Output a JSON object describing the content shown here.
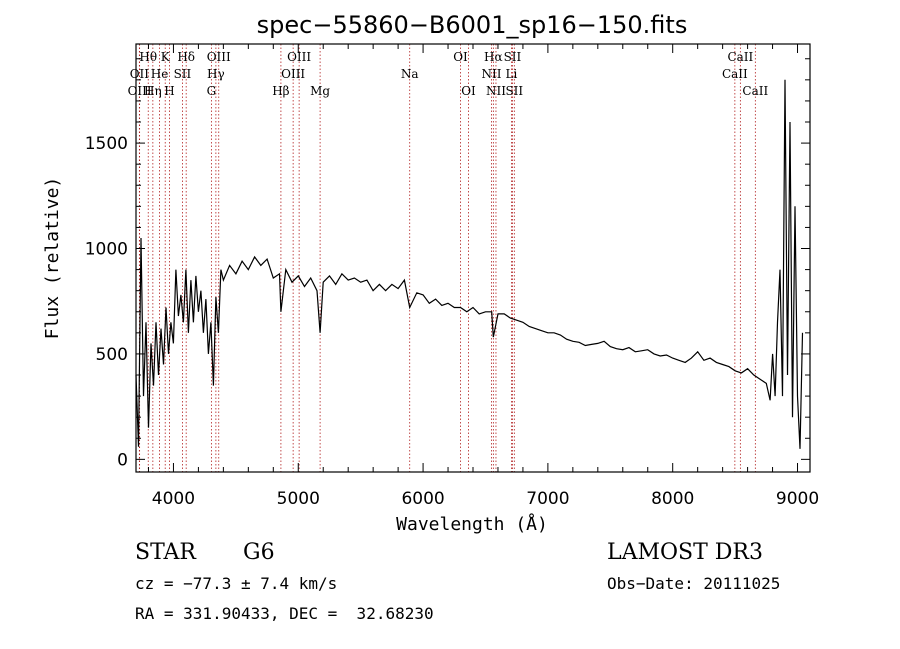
{
  "chart_data": {
    "type": "line",
    "title": "spec−55860−B6001_sp16−150.fits",
    "xlabel": "Wavelength (Å)",
    "ylabel": "Flux (relative)",
    "xlim": [
      3700,
      9100
    ],
    "ylim": [
      -60,
      1970
    ],
    "xticks": [
      4000,
      5000,
      6000,
      7000,
      8000,
      9000
    ],
    "yticks": [
      0,
      500,
      1000,
      1500
    ],
    "series": [
      {
        "name": "flux",
        "x": [
          3700,
          3720,
          3740,
          3760,
          3780,
          3800,
          3820,
          3840,
          3860,
          3880,
          3900,
          3920,
          3940,
          3960,
          3980,
          4000,
          4020,
          4040,
          4060,
          4080,
          4100,
          4120,
          4140,
          4160,
          4180,
          4200,
          4220,
          4240,
          4260,
          4280,
          4300,
          4320,
          4340,
          4360,
          4380,
          4400,
          4450,
          4500,
          4550,
          4600,
          4650,
          4700,
          4750,
          4800,
          4850,
          4861,
          4900,
          4950,
          5000,
          5050,
          5100,
          5150,
          5175,
          5200,
          5250,
          5300,
          5350,
          5400,
          5450,
          5500,
          5550,
          5600,
          5650,
          5700,
          5750,
          5800,
          5850,
          5893,
          5950,
          6000,
          6050,
          6100,
          6150,
          6200,
          6250,
          6300,
          6350,
          6400,
          6450,
          6500,
          6550,
          6563,
          6600,
          6650,
          6700,
          6750,
          6800,
          6850,
          6900,
          6950,
          7000,
          7050,
          7100,
          7150,
          7200,
          7250,
          7300,
          7350,
          7400,
          7450,
          7500,
          7550,
          7600,
          7650,
          7700,
          7750,
          7800,
          7850,
          7900,
          7950,
          8000,
          8050,
          8100,
          8150,
          8200,
          8250,
          8300,
          8350,
          8400,
          8450,
          8500,
          8550,
          8600,
          8650,
          8700,
          8750,
          8780,
          8800,
          8820,
          8840,
          8860,
          8880,
          8900,
          8920,
          8940,
          8960,
          8980,
          9000,
          9020,
          9040
        ],
        "values": [
          400,
          60,
          1050,
          300,
          650,
          150,
          550,
          350,
          650,
          400,
          620,
          450,
          720,
          500,
          650,
          550,
          900,
          680,
          780,
          650,
          900,
          600,
          850,
          650,
          870,
          700,
          800,
          600,
          760,
          500,
          650,
          350,
          770,
          600,
          900,
          850,
          920,
          880,
          940,
          900,
          960,
          920,
          950,
          860,
          880,
          700,
          900,
          840,
          870,
          820,
          860,
          800,
          600,
          840,
          870,
          830,
          880,
          850,
          860,
          840,
          850,
          800,
          830,
          800,
          830,
          810,
          850,
          720,
          790,
          780,
          740,
          760,
          730,
          740,
          720,
          720,
          700,
          720,
          690,
          700,
          700,
          580,
          690,
          690,
          670,
          660,
          650,
          630,
          620,
          610,
          600,
          600,
          590,
          570,
          560,
          555,
          540,
          545,
          550,
          560,
          535,
          525,
          520,
          530,
          510,
          515,
          520,
          500,
          490,
          495,
          480,
          470,
          460,
          480,
          510,
          470,
          480,
          460,
          450,
          440,
          420,
          410,
          430,
          400,
          380,
          360,
          280,
          500,
          300,
          650,
          900,
          300,
          1800,
          400,
          1600,
          200,
          1200,
          300,
          50,
          600
        ]
      }
    ],
    "lines": [
      {
        "label": "Hθ",
        "x": 3798,
        "row": 0
      },
      {
        "label": "OII",
        "x": 3727,
        "row": 1
      },
      {
        "label": "OIII",
        "x": 3729,
        "row": 2
      },
      {
        "label": "He",
        "x": 3889,
        "row": 1
      },
      {
        "label": "Hη",
        "x": 3835,
        "row": 2
      },
      {
        "label": "K",
        "x": 3934,
        "row": 0
      },
      {
        "label": "H",
        "x": 3968,
        "row": 2
      },
      {
        "label": "SII",
        "x": 4072,
        "row": 1
      },
      {
        "label": "Hδ",
        "x": 4102,
        "row": 0
      },
      {
        "label": "OIII",
        "x": 4363,
        "row": 0
      },
      {
        "label": "Hγ",
        "x": 4340,
        "row": 1
      },
      {
        "label": "G",
        "x": 4304,
        "row": 2
      },
      {
        "label": "Hβ",
        "x": 4861,
        "row": 2
      },
      {
        "label": "OIII",
        "x": 5007,
        "row": 0
      },
      {
        "label": "OIII",
        "x": 4959,
        "row": 1
      },
      {
        "label": "Mg",
        "x": 5175,
        "row": 2
      },
      {
        "label": "Na",
        "x": 5893,
        "row": 1
      },
      {
        "label": "OI",
        "x": 6300,
        "row": 0
      },
      {
        "label": "OI",
        "x": 6364,
        "row": 2
      },
      {
        "label": "Hα",
        "x": 6563,
        "row": 0
      },
      {
        "label": "NII",
        "x": 6548,
        "row": 1
      },
      {
        "label": "NII",
        "x": 6584,
        "row": 2
      },
      {
        "label": "SII",
        "x": 6716,
        "row": 0
      },
      {
        "label": "Li",
        "x": 6708,
        "row": 1
      },
      {
        "label": "SII",
        "x": 6731,
        "row": 2
      },
      {
        "label": "CaII",
        "x": 8542,
        "row": 0
      },
      {
        "label": "CaII",
        "x": 8498,
        "row": 1
      },
      {
        "label": "CaII",
        "x": 8662,
        "row": 2
      }
    ],
    "colors": {
      "spectrum": "#000000",
      "line_marker": "#b22222",
      "axes": "#000000"
    }
  },
  "info": {
    "class_label": "STAR",
    "subclass": "G6",
    "survey": "LAMOST DR3",
    "cz": "cz = −77.3 ± 7.4 km/s",
    "obs_date": "Obs−Date: 20111025",
    "coords": "RA = 331.90433, DEC =  32.68230"
  }
}
